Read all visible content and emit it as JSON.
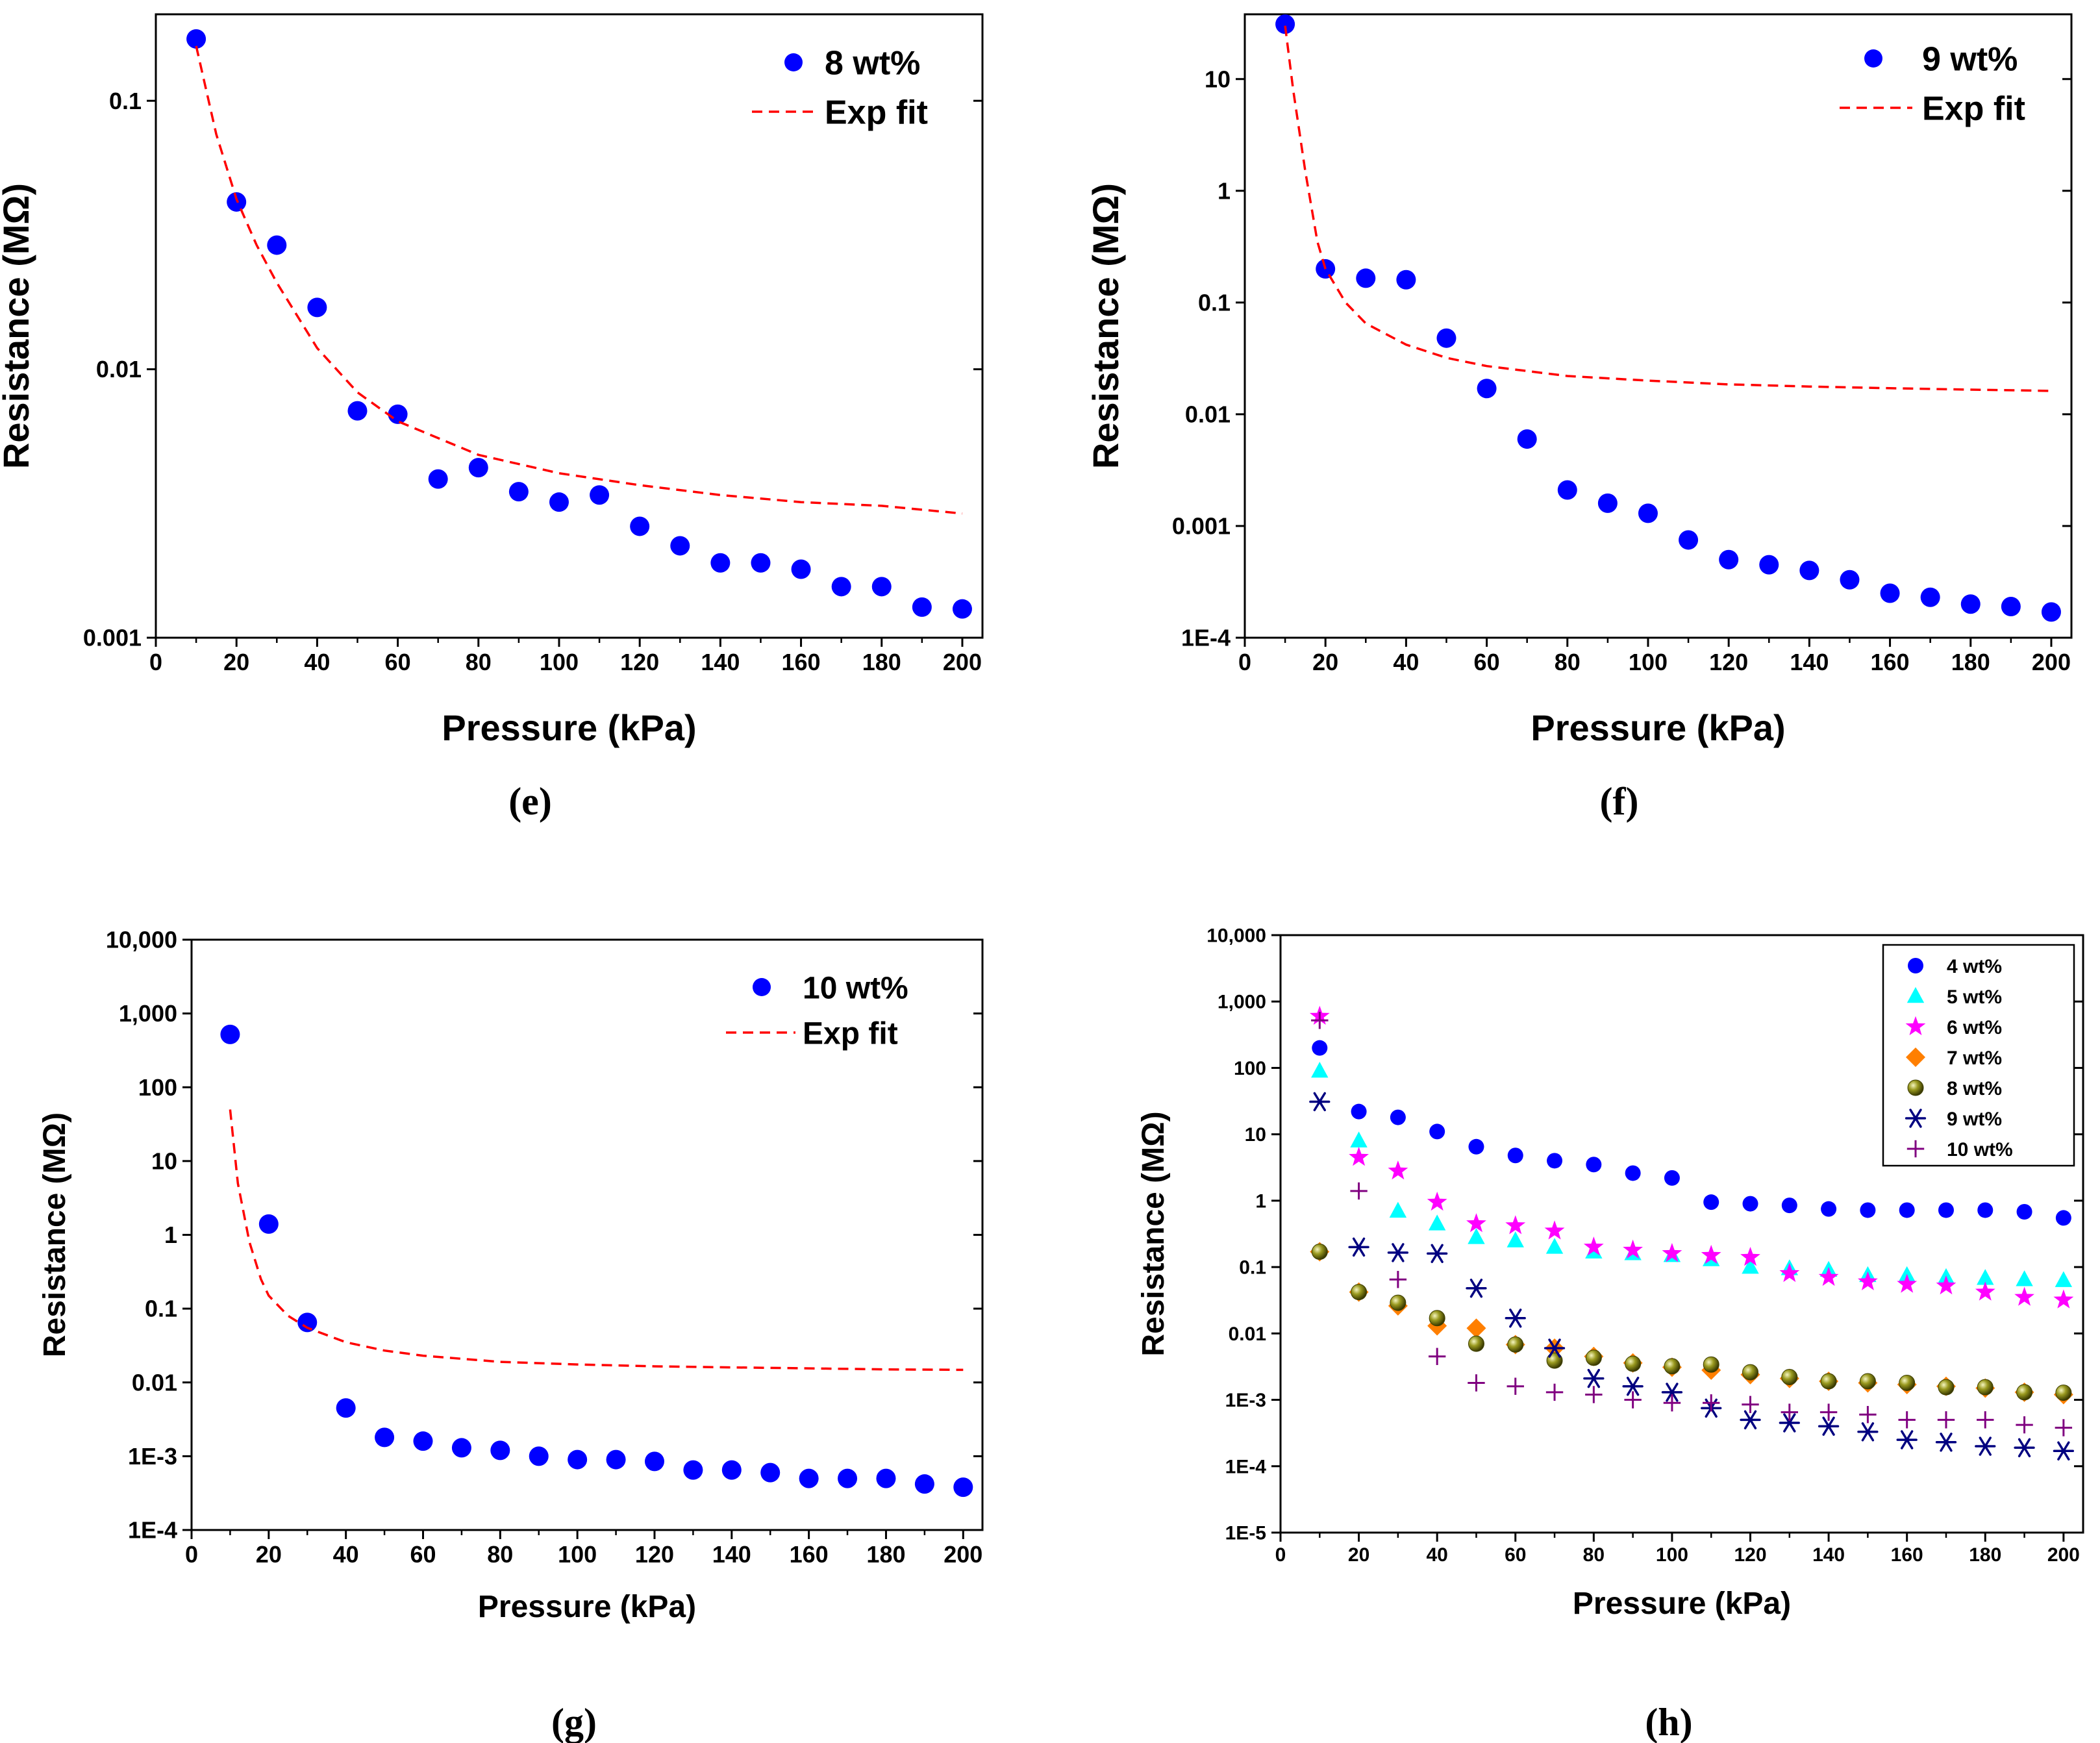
{
  "colors": {
    "marker_blue": "#0000ff",
    "fit_red": "#ff0000",
    "cyan": "#00ffff",
    "magenta": "#ff00ff",
    "orange": "#ff7f00",
    "olive": "#808000",
    "navy": "#000080",
    "purple": "#800080"
  },
  "chart_data": [
    {
      "id": "e",
      "type": "scatter",
      "caption": "(e)",
      "xlabel": "Pressure (kPa)",
      "ylabel": "Resistance (MΩ)",
      "xlim": [
        0,
        205
      ],
      "xticks": [
        0,
        20,
        40,
        60,
        80,
        100,
        120,
        140,
        160,
        180,
        200
      ],
      "yscale": "log",
      "ylim": [
        0.001,
        0.21
      ],
      "yticks": [
        {
          "value": 0.001,
          "label": "0.001"
        },
        {
          "value": 0.01,
          "label": "0.01"
        },
        {
          "value": 0.1,
          "label": "0.1"
        }
      ],
      "legend_position": "top-right",
      "series": [
        {
          "name": "8 wt%",
          "style": "marker",
          "marker": "circle",
          "color": "#0000ff",
          "x": [
            10,
            20,
            30,
            40,
            50,
            60,
            70,
            80,
            90,
            100,
            110,
            120,
            130,
            140,
            150,
            160,
            170,
            180,
            190,
            200
          ],
          "y": [
            0.17,
            0.042,
            0.029,
            0.017,
            0.007,
            0.0068,
            0.0039,
            0.0043,
            0.0035,
            0.0032,
            0.0034,
            0.0026,
            0.0022,
            0.0019,
            0.0019,
            0.0018,
            0.00155,
            0.00155,
            0.0013,
            0.00128
          ]
        },
        {
          "name": "Exp fit",
          "style": "dashed-line",
          "color": "#ff0000",
          "x": [
            10,
            15,
            20,
            25,
            30,
            40,
            50,
            60,
            80,
            100,
            120,
            140,
            160,
            180,
            200
          ],
          "y": [
            0.16,
            0.075,
            0.043,
            0.029,
            0.021,
            0.012,
            0.0082,
            0.0064,
            0.0048,
            0.0041,
            0.0037,
            0.0034,
            0.0032,
            0.0031,
            0.0029
          ]
        }
      ]
    },
    {
      "id": "f",
      "type": "scatter",
      "caption": "(f)",
      "xlabel": "Pressure (kPa)",
      "ylabel": "Resistance (MΩ)",
      "xlim": [
        0,
        205
      ],
      "xticks": [
        0,
        20,
        40,
        60,
        80,
        100,
        120,
        140,
        160,
        180,
        200
      ],
      "yscale": "log",
      "ylim": [
        0.0001,
        38
      ],
      "yticks": [
        {
          "value": 0.0001,
          "label": "1E-4"
        },
        {
          "value": 0.001,
          "label": "0.001"
        },
        {
          "value": 0.01,
          "label": "0.01"
        },
        {
          "value": 0.1,
          "label": "0.1"
        },
        {
          "value": 1,
          "label": "1"
        },
        {
          "value": 10,
          "label": "10"
        }
      ],
      "legend_position": "top-right",
      "series": [
        {
          "name": "9 wt%",
          "style": "marker",
          "marker": "circle",
          "color": "#0000ff",
          "x": [
            10,
            20,
            30,
            40,
            50,
            60,
            70,
            80,
            90,
            100,
            110,
            120,
            130,
            140,
            150,
            160,
            170,
            180,
            190,
            200
          ],
          "y": [
            31,
            0.2,
            0.165,
            0.16,
            0.048,
            0.017,
            0.006,
            0.0021,
            0.0016,
            0.0013,
            0.00075,
            0.0005,
            0.00045,
            0.0004,
            0.00033,
            0.00025,
            0.00023,
            0.0002,
            0.00019,
            0.00017
          ]
        },
        {
          "name": "Exp fit",
          "style": "dashed-line",
          "color": "#ff0000",
          "x": [
            10,
            12,
            15,
            18,
            20,
            25,
            30,
            40,
            50,
            60,
            80,
            100,
            120,
            140,
            160,
            180,
            200
          ],
          "y": [
            30,
            8,
            1.5,
            0.35,
            0.2,
            0.1,
            0.065,
            0.042,
            0.032,
            0.027,
            0.022,
            0.02,
            0.0185,
            0.0177,
            0.0171,
            0.0166,
            0.0162
          ]
        }
      ]
    },
    {
      "id": "g",
      "type": "scatter",
      "caption": "(g)",
      "xlabel": "Pressure (kPa)",
      "ylabel": "Resistance (MΩ)",
      "xlim": [
        0,
        205
      ],
      "xticks": [
        0,
        20,
        40,
        60,
        80,
        100,
        120,
        140,
        160,
        180,
        200
      ],
      "yscale": "log",
      "ylim": [
        0.0001,
        10000
      ],
      "yticks": [
        {
          "value": 0.0001,
          "label": "1E-4"
        },
        {
          "value": 0.001,
          "label": "1E-3"
        },
        {
          "value": 0.01,
          "label": "0.01"
        },
        {
          "value": 0.1,
          "label": "0.1"
        },
        {
          "value": 1,
          "label": "1"
        },
        {
          "value": 10,
          "label": "10"
        },
        {
          "value": 100,
          "label": "100"
        },
        {
          "value": 1000,
          "label": "1,000"
        },
        {
          "value": 10000,
          "label": "10,000"
        }
      ],
      "legend_position": "top-right",
      "series": [
        {
          "name": "10 wt%",
          "style": "marker",
          "marker": "circle",
          "color": "#0000ff",
          "x": [
            10,
            20,
            30,
            40,
            50,
            60,
            70,
            80,
            90,
            100,
            110,
            120,
            130,
            140,
            150,
            160,
            170,
            180,
            190,
            200
          ],
          "y": [
            520,
            1.4,
            0.065,
            0.0045,
            0.0018,
            0.0016,
            0.0013,
            0.0012,
            0.001,
            0.0009,
            0.0009,
            0.00085,
            0.00065,
            0.00065,
            0.0006,
            0.0005,
            0.0005,
            0.0005,
            0.00042,
            0.00038
          ]
        },
        {
          "name": "Exp fit",
          "style": "dashed-line",
          "color": "#ff0000",
          "x": [
            10,
            12,
            15,
            18,
            20,
            25,
            30,
            40,
            50,
            60,
            80,
            100,
            120,
            140,
            160,
            180,
            200
          ],
          "y": [
            50,
            5,
            0.8,
            0.25,
            0.15,
            0.08,
            0.055,
            0.035,
            0.027,
            0.023,
            0.019,
            0.0175,
            0.0165,
            0.016,
            0.0155,
            0.015,
            0.0148
          ]
        }
      ]
    },
    {
      "id": "h",
      "type": "scatter",
      "caption": "(h)",
      "xlabel": "Pressure (kPa)",
      "ylabel": "Resistance (MΩ)",
      "xlim": [
        0,
        205
      ],
      "xticks": [
        0,
        20,
        40,
        60,
        80,
        100,
        120,
        140,
        160,
        180,
        200
      ],
      "yscale": "log",
      "ylim": [
        1e-05,
        10000
      ],
      "yticks": [
        {
          "value": 1e-05,
          "label": "1E-5"
        },
        {
          "value": 0.0001,
          "label": "1E-4"
        },
        {
          "value": 0.001,
          "label": "1E-3"
        },
        {
          "value": 0.01,
          "label": "0.01"
        },
        {
          "value": 0.1,
          "label": "0.1"
        },
        {
          "value": 1,
          "label": "1"
        },
        {
          "value": 10,
          "label": "10"
        },
        {
          "value": 100,
          "label": "100"
        },
        {
          "value": 1000,
          "label": "1,000"
        },
        {
          "value": 10000,
          "label": "10,000"
        }
      ],
      "legend_position": "top-right",
      "series": [
        {
          "name": "4 wt%",
          "style": "marker",
          "marker": "circle",
          "color": "#0000ff",
          "x": [
            10,
            20,
            30,
            40,
            50,
            60,
            70,
            80,
            90,
            100,
            110,
            120,
            130,
            140,
            150,
            160,
            170,
            180,
            190,
            200
          ],
          "y": [
            200,
            22,
            18,
            11,
            6.5,
            4.8,
            4,
            3.5,
            2.6,
            2.2,
            0.95,
            0.9,
            0.85,
            0.75,
            0.72,
            0.72,
            0.72,
            0.72,
            0.68,
            0.55
          ]
        },
        {
          "name": "5 wt%",
          "style": "marker",
          "marker": "triangle",
          "color": "#00ffff",
          "x": [
            10,
            20,
            30,
            40,
            50,
            60,
            70,
            80,
            90,
            100,
            110,
            120,
            130,
            140,
            150,
            160,
            170,
            180,
            190,
            200
          ],
          "y": [
            90,
            8,
            0.7,
            0.45,
            0.28,
            0.25,
            0.2,
            0.17,
            0.16,
            0.15,
            0.13,
            0.1,
            0.095,
            0.09,
            0.075,
            0.075,
            0.07,
            0.068,
            0.065,
            0.063
          ]
        },
        {
          "name": "6 wt%",
          "style": "marker",
          "marker": "star",
          "color": "#ff00ff",
          "x": [
            10,
            20,
            30,
            40,
            50,
            60,
            70,
            80,
            90,
            100,
            110,
            120,
            130,
            140,
            150,
            160,
            170,
            180,
            190,
            200
          ],
          "y": [
            600,
            4.5,
            2.8,
            0.95,
            0.45,
            0.42,
            0.35,
            0.2,
            0.18,
            0.16,
            0.15,
            0.14,
            0.08,
            0.07,
            0.06,
            0.055,
            0.052,
            0.042,
            0.035,
            0.032
          ]
        },
        {
          "name": "7 wt%",
          "style": "marker",
          "marker": "diamond",
          "color": "#ff7f00",
          "x": [
            10,
            20,
            30,
            40,
            50,
            60,
            70,
            80,
            90,
            100,
            110,
            120,
            130,
            140,
            150,
            160,
            170,
            180,
            190,
            200
          ],
          "y": [
            0.17,
            0.042,
            0.026,
            0.013,
            0.012,
            0.0068,
            0.006,
            0.0045,
            0.0036,
            0.0031,
            0.0028,
            0.0024,
            0.0021,
            0.0019,
            0.0018,
            0.0017,
            0.0016,
            0.0015,
            0.0013,
            0.0012
          ]
        },
        {
          "name": "8 wt%",
          "style": "marker",
          "marker": "sphere",
          "color": "#808000",
          "x": [
            10,
            20,
            30,
            40,
            50,
            60,
            70,
            80,
            90,
            100,
            110,
            120,
            130,
            140,
            150,
            160,
            170,
            180,
            190,
            200
          ],
          "y": [
            0.17,
            0.042,
            0.029,
            0.017,
            0.007,
            0.0068,
            0.0039,
            0.0043,
            0.0035,
            0.0032,
            0.0034,
            0.0026,
            0.0022,
            0.0019,
            0.0019,
            0.0018,
            0.00155,
            0.00155,
            0.0013,
            0.00128
          ]
        },
        {
          "name": "9 wt%",
          "style": "marker",
          "marker": "asterisk",
          "color": "#000080",
          "x": [
            10,
            20,
            30,
            40,
            50,
            60,
            70,
            80,
            90,
            100,
            110,
            120,
            130,
            140,
            150,
            160,
            170,
            180,
            190,
            200
          ],
          "y": [
            31,
            0.2,
            0.165,
            0.16,
            0.048,
            0.017,
            0.006,
            0.0021,
            0.0016,
            0.0013,
            0.00075,
            0.0005,
            0.00045,
            0.0004,
            0.00033,
            0.00025,
            0.00023,
            0.0002,
            0.00019,
            0.00017
          ]
        },
        {
          "name": "10 wt%",
          "style": "marker",
          "marker": "plus",
          "color": "#800080",
          "x": [
            10,
            20,
            30,
            40,
            50,
            60,
            70,
            80,
            90,
            100,
            110,
            120,
            130,
            140,
            150,
            160,
            170,
            180,
            190,
            200
          ],
          "y": [
            520,
            1.4,
            0.065,
            0.0045,
            0.0018,
            0.0016,
            0.0013,
            0.0012,
            0.001,
            0.0009,
            0.0009,
            0.00085,
            0.00065,
            0.00065,
            0.0006,
            0.0005,
            0.0005,
            0.0005,
            0.00042,
            0.00038
          ]
        }
      ]
    }
  ]
}
